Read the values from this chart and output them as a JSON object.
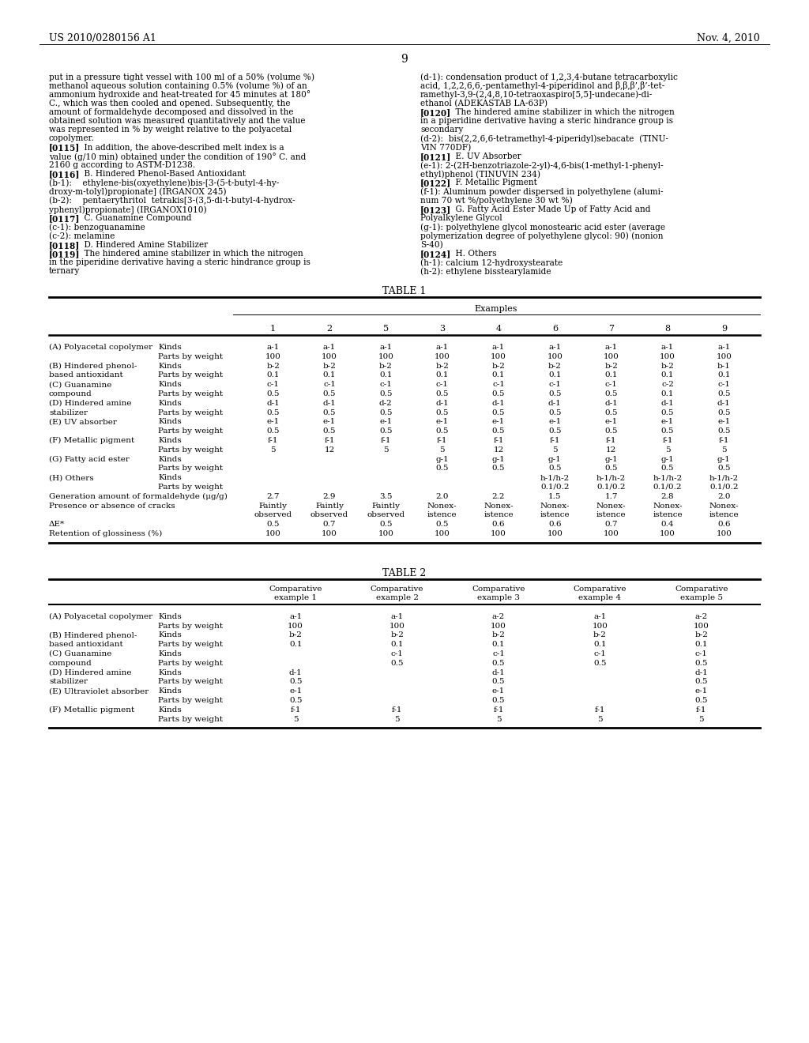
{
  "page_header_left": "US 2010/0280156 A1",
  "page_header_right": "Nov. 4, 2010",
  "page_number": "9",
  "left_col_lines": [
    {
      "text": "put in a pressure tight vessel with 100 ml of a 50% (volume %)",
      "bold_prefix": ""
    },
    {
      "text": "methanol aqueous solution containing 0.5% (volume %) of an",
      "bold_prefix": ""
    },
    {
      "text": "ammonium hydroxide and heat-treated for 45 minutes at 180°",
      "bold_prefix": ""
    },
    {
      "text": "C., which was then cooled and opened. Subsequently, the",
      "bold_prefix": ""
    },
    {
      "text": "amount of formaldehyde decomposed and dissolved in the",
      "bold_prefix": ""
    },
    {
      "text": "obtained solution was measured quantitatively and the value",
      "bold_prefix": ""
    },
    {
      "text": "was represented in % by weight relative to the polyacetal",
      "bold_prefix": ""
    },
    {
      "text": "copolymer.",
      "bold_prefix": ""
    },
    {
      "text": "[0115]",
      "bold_prefix": "[0115]",
      "rest": "    In addition, the above-described melt index is a"
    },
    {
      "text": "value (g/10 min) obtained under the condition of 190° C. and",
      "bold_prefix": ""
    },
    {
      "text": "2160 g according to ASTM-D1238.",
      "bold_prefix": ""
    },
    {
      "text": "[0116]",
      "bold_prefix": "[0116]",
      "rest": "    B. Hindered Phenol-Based Antioxidant"
    },
    {
      "text": "(b-1):    ethylene-bis(oxyethylene)bis-[3-(5-t-butyl-4-hy-",
      "bold_prefix": ""
    },
    {
      "text": "droxy-m-tolyl)propionate] (IRGANOX 245)",
      "bold_prefix": ""
    },
    {
      "text": "(b-2):    pentaerythritol  tetrakis[3-(3,5-di-t-butyl-4-hydrox-",
      "bold_prefix": ""
    },
    {
      "text": "yphenyl)propionate] (IRGANOX1010)",
      "bold_prefix": ""
    },
    {
      "text": "[0117]",
      "bold_prefix": "[0117]",
      "rest": "    C. Guanamine Compound"
    },
    {
      "text": "(c-1): benzoguanamine",
      "bold_prefix": ""
    },
    {
      "text": "(c-2): melamine",
      "bold_prefix": ""
    },
    {
      "text": "[0118]",
      "bold_prefix": "[0118]",
      "rest": "    D. Hindered Amine Stabilizer"
    },
    {
      "text": "[0119]",
      "bold_prefix": "[0119]",
      "rest": "    The hindered amine stabilizer in which the nitrogen"
    },
    {
      "text": "in the piperidine derivative having a steric hindrance group is",
      "bold_prefix": ""
    },
    {
      "text": "ternary",
      "bold_prefix": ""
    }
  ],
  "right_col_lines": [
    {
      "text": "(d-1): condensation product of 1,2,3,4-butane tetracarboxylic",
      "bold_prefix": ""
    },
    {
      "text": "acid, 1,2,2,6,6,-pentamethyl-4-piperidinol and β,β,β’,β’-tet-",
      "bold_prefix": ""
    },
    {
      "text": "ramethyl-3,9-(2,4,8,10-tetraoxaspiro[5,5]-undecane)-di-",
      "bold_prefix": ""
    },
    {
      "text": "ethanol (ADEKASTAB LA-63P)",
      "bold_prefix": ""
    },
    {
      "text": "[0120]",
      "bold_prefix": "[0120]",
      "rest": "    The hindered amine stabilizer in which the nitrogen"
    },
    {
      "text": "in a piperidine derivative having a steric hindrance group is",
      "bold_prefix": ""
    },
    {
      "text": "secondary",
      "bold_prefix": ""
    },
    {
      "text": "(d-2):  bis(2,2,6,6-tetramethyl-4-piperidyl)sebacate  (TINU-",
      "bold_prefix": ""
    },
    {
      "text": "VIN 770DF)",
      "bold_prefix": ""
    },
    {
      "text": "[0121]",
      "bold_prefix": "[0121]",
      "rest": "    E. UV Absorber"
    },
    {
      "text": "(e-1): 2-(2H-benzotriazole-2-yl)-4,6-bis(1-methyl-1-phenyl-",
      "bold_prefix": ""
    },
    {
      "text": "ethyl)phenol (TINUVIN 234)",
      "bold_prefix": ""
    },
    {
      "text": "[0122]",
      "bold_prefix": "[0122]",
      "rest": "    F. Metallic Pigment"
    },
    {
      "text": "(f-1): Aluminum powder dispersed in polyethylene (alumi-",
      "bold_prefix": ""
    },
    {
      "text": "num 70 wt %/polyethylene 30 wt %)",
      "bold_prefix": ""
    },
    {
      "text": "[0123]",
      "bold_prefix": "[0123]",
      "rest": "    G. Fatty Acid Ester Made Up of Fatty Acid and"
    },
    {
      "text": "Polyalkylene Glycol",
      "bold_prefix": ""
    },
    {
      "text": "(g-1): polyethylene glycol monostearic acid ester (average",
      "bold_prefix": ""
    },
    {
      "text": "polymerization degree of polyethylene glycol: 90) (nonion",
      "bold_prefix": ""
    },
    {
      "text": "S-40)",
      "bold_prefix": ""
    },
    {
      "text": "[0124]",
      "bold_prefix": "[0124]",
      "rest": "    H. Others"
    },
    {
      "text": "(h-1): calcium 12-hydroxystearate",
      "bold_prefix": ""
    },
    {
      "text": "(h-2): ethylene bisstearylamide",
      "bold_prefix": ""
    }
  ],
  "table1_title": "TABLE 1",
  "table1_col_header": "Examples",
  "table1_examples": [
    "1",
    "2",
    "5",
    "3",
    "4",
    "6",
    "7",
    "8",
    "9"
  ],
  "table1_rows": [
    {
      "label1": "(A) Polyacetal copolymer",
      "label2": "Kinds",
      "values": [
        "a-1",
        "a-1",
        "a-1",
        "a-1",
        "a-1",
        "a-1",
        "a-1",
        "a-1",
        "a-1"
      ],
      "extra_lines": 0
    },
    {
      "label1": "",
      "label2": "Parts by weight",
      "values": [
        "100",
        "100",
        "100",
        "100",
        "100",
        "100",
        "100",
        "100",
        "100"
      ],
      "extra_lines": 0
    },
    {
      "label1": "(B) Hindered phenol-",
      "label2": "Kinds",
      "values": [
        "b-2",
        "b-2",
        "b-2",
        "b-2",
        "b-2",
        "b-2",
        "b-2",
        "b-2",
        "b-1"
      ],
      "extra_lines": 0
    },
    {
      "label1": "based antioxidant",
      "label2": "Parts by weight",
      "values": [
        "0.1",
        "0.1",
        "0.1",
        "0.1",
        "0.1",
        "0.1",
        "0.1",
        "0.1",
        "0.1"
      ],
      "extra_lines": 0
    },
    {
      "label1": "(C) Guanamine",
      "label2": "Kinds",
      "values": [
        "c-1",
        "c-1",
        "c-1",
        "c-1",
        "c-1",
        "c-1",
        "c-1",
        "c-2",
        "c-1"
      ],
      "extra_lines": 0
    },
    {
      "label1": "compound",
      "label2": "Parts by weight",
      "values": [
        "0.5",
        "0.5",
        "0.5",
        "0.5",
        "0.5",
        "0.5",
        "0.5",
        "0.1",
        "0.5"
      ],
      "extra_lines": 0
    },
    {
      "label1": "(D) Hindered amine",
      "label2": "Kinds",
      "values": [
        "d-1",
        "d-1",
        "d-2",
        "d-1",
        "d-1",
        "d-1",
        "d-1",
        "d-1",
        "d-1"
      ],
      "extra_lines": 0
    },
    {
      "label1": "stabilizer",
      "label2": "Parts by weight",
      "values": [
        "0.5",
        "0.5",
        "0.5",
        "0.5",
        "0.5",
        "0.5",
        "0.5",
        "0.5",
        "0.5"
      ],
      "extra_lines": 0
    },
    {
      "label1": "(E) UV absorber",
      "label2": "Kinds",
      "values": [
        "e-1",
        "e-1",
        "e-1",
        "e-1",
        "e-1",
        "e-1",
        "e-1",
        "e-1",
        "e-1"
      ],
      "extra_lines": 0
    },
    {
      "label1": "",
      "label2": "Parts by weight",
      "values": [
        "0.5",
        "0.5",
        "0.5",
        "0.5",
        "0.5",
        "0.5",
        "0.5",
        "0.5",
        "0.5"
      ],
      "extra_lines": 0
    },
    {
      "label1": "(F) Metallic pigment",
      "label2": "Kinds",
      "values": [
        "f-1",
        "f-1",
        "f-1",
        "f-1",
        "f-1",
        "f-1",
        "f-1",
        "f-1",
        "f-1"
      ],
      "extra_lines": 0
    },
    {
      "label1": "",
      "label2": "Parts by weight",
      "values": [
        "5",
        "12",
        "5",
        "5",
        "12",
        "5",
        "12",
        "5",
        "5"
      ],
      "extra_lines": 0
    },
    {
      "label1": "(G) Fatty acid ester",
      "label2": "Kinds",
      "values": [
        "",
        "",
        "",
        "g-1",
        "g-1",
        "g-1",
        "g-1",
        "g-1",
        "g-1"
      ],
      "extra_lines": 0
    },
    {
      "label1": "",
      "label2": "Parts by weight",
      "values": [
        "",
        "",
        "",
        "0.5",
        "0.5",
        "0.5",
        "0.5",
        "0.5",
        "0.5"
      ],
      "extra_lines": 0
    },
    {
      "label1": "(H) Others",
      "label2": "Kinds",
      "values": [
        "",
        "",
        "",
        "",
        "",
        "h-1/h-2",
        "h-1/h-2",
        "h-1/h-2",
        "h-1/h-2"
      ],
      "extra_lines": 0
    },
    {
      "label1": "",
      "label2": "Parts by weight",
      "values": [
        "",
        "",
        "",
        "",
        "",
        "0.1/0.2",
        "0.1/0.2",
        "0.1/0.2",
        "0.1/0.2"
      ],
      "extra_lines": 0
    },
    {
      "label1": "Generation amount of formaldehyde (μg/g)",
      "label2": "",
      "values": [
        "2.7",
        "2.9",
        "3.5",
        "2.0",
        "2.2",
        "1.5",
        "1.7",
        "2.8",
        "2.0"
      ],
      "extra_lines": 0
    },
    {
      "label1": "Presence or absence of cracks",
      "label2": "",
      "values": [
        "Faintly\nobserved",
        "Faintly\nobserved",
        "Faintly\nobserved",
        "Nonex-\nistence",
        "Nonex-\nistence",
        "Nonex-\nistence",
        "Nonex-\nistence",
        "Nonex-\nistence",
        "Nonex-\nistence"
      ],
      "extra_lines": 1
    },
    {
      "label1": "ΔE*",
      "label2": "",
      "values": [
        "0.5",
        "0.7",
        "0.5",
        "0.5",
        "0.6",
        "0.6",
        "0.7",
        "0.4",
        "0.6"
      ],
      "extra_lines": 0
    },
    {
      "label1": "Retention of glossiness (%)",
      "label2": "",
      "values": [
        "100",
        "100",
        "100",
        "100",
        "100",
        "100",
        "100",
        "100",
        "100"
      ],
      "extra_lines": 0
    }
  ],
  "table2_title": "TABLE 2",
  "table2_col_header": [
    "Comparative\nexample 1",
    "Comparative\nexample 2",
    "Comparative\nexample 3",
    "Comparative\nexample 4",
    "Comparative\nexample 5"
  ],
  "table2_rows": [
    {
      "label1": "(A) Polyacetal copolymer",
      "label2": "Kinds",
      "values": [
        "a-1",
        "a-1",
        "a-2",
        "a-1",
        "a-2"
      ]
    },
    {
      "label1": "",
      "label2": "Parts by weight",
      "values": [
        "100",
        "100",
        "100",
        "100",
        "100"
      ]
    },
    {
      "label1": "(B) Hindered phenol-",
      "label2": "Kinds",
      "values": [
        "b-2",
        "b-2",
        "b-2",
        "b-2",
        "b-2"
      ]
    },
    {
      "label1": "based antioxidant",
      "label2": "Parts by weight",
      "values": [
        "0.1",
        "0.1",
        "0.1",
        "0.1",
        "0.1"
      ]
    },
    {
      "label1": "(C) Guanamine",
      "label2": "Kinds",
      "values": [
        "",
        "c-1",
        "c-1",
        "c-1",
        "c-1"
      ]
    },
    {
      "label1": "compound",
      "label2": "Parts by weight",
      "values": [
        "",
        "0.5",
        "0.5",
        "0.5",
        "0.5"
      ]
    },
    {
      "label1": "(D) Hindered amine",
      "label2": "Kinds",
      "values": [
        "d-1",
        "",
        "d-1",
        "",
        "d-1"
      ]
    },
    {
      "label1": "stabilizer",
      "label2": "Parts by weight",
      "values": [
        "0.5",
        "",
        "0.5",
        "",
        "0.5"
      ]
    },
    {
      "label1": "(E) Ultraviolet absorber",
      "label2": "Kinds",
      "values": [
        "e-1",
        "",
        "e-1",
        "",
        "e-1"
      ]
    },
    {
      "label1": "",
      "label2": "Parts by weight",
      "values": [
        "0.5",
        "",
        "0.5",
        "",
        "0.5"
      ]
    },
    {
      "label1": "(F) Metallic pigment",
      "label2": "Kinds",
      "values": [
        "f-1",
        "f-1",
        "f-1",
        "f-1",
        "f-1"
      ]
    },
    {
      "label1": "",
      "label2": "Parts by weight",
      "values": [
        "5",
        "5",
        "5",
        "5",
        "5"
      ]
    }
  ],
  "bg_color": "#ffffff",
  "text_color": "#000000"
}
